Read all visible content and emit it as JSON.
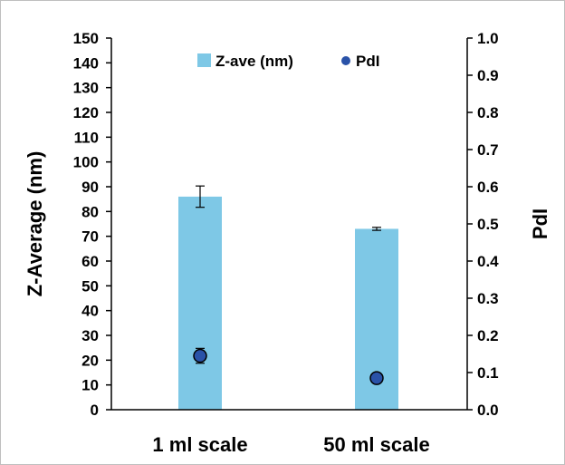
{
  "chart_data": {
    "type": "bar",
    "categories": [
      "1 ml scale",
      "50 ml scale"
    ],
    "series": [
      {
        "name": "Z-ave (nm)",
        "type": "bar",
        "axis": "left",
        "values": [
          86,
          73
        ],
        "errors": [
          4.3,
          0.6
        ],
        "color": "#7EC8E6"
      },
      {
        "name": "PdI",
        "type": "scatter",
        "axis": "right",
        "values": [
          0.145,
          0.085
        ],
        "errors": [
          0.02,
          0.003
        ],
        "color": "#2A52A8"
      }
    ],
    "ylabel": "Z-Average (nm)",
    "y2label": "PdI",
    "ylim": [
      0,
      150
    ],
    "y2lim": [
      0,
      1.0
    ],
    "yticks": [
      "0",
      "10",
      "20",
      "30",
      "40",
      "50",
      "60",
      "70",
      "80",
      "90",
      "100",
      "110",
      "120",
      "130",
      "140",
      "150"
    ],
    "y2ticks": [
      "0.0",
      "0.1",
      "0.2",
      "0.3",
      "0.4",
      "0.5",
      "0.6",
      "0.7",
      "0.8",
      "0.9",
      "1.0"
    ],
    "grid": false,
    "legend": "top-center"
  }
}
